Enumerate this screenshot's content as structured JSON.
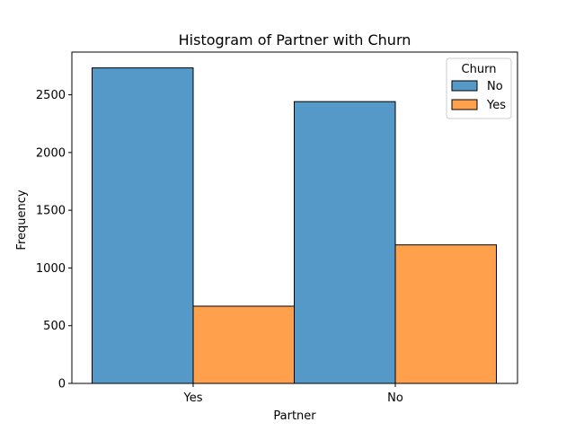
{
  "chart_data": {
    "type": "bar",
    "title": "Histogram of Partner with Churn",
    "xlabel": "Partner",
    "ylabel": "Frequency",
    "categories": [
      "Yes",
      "No"
    ],
    "series": [
      {
        "name": "No",
        "values": [
          2733,
          2441
        ],
        "color": "#5599c8"
      },
      {
        "name": "Yes",
        "values": [
          669,
          1200
        ],
        "color": "#ffa04d"
      }
    ],
    "ylim": [
      0,
      2870
    ],
    "yticks": [
      0,
      500,
      1000,
      1500,
      2000,
      2500
    ],
    "legend": {
      "title": "Churn",
      "placement": "top-right"
    },
    "grid": false
  }
}
